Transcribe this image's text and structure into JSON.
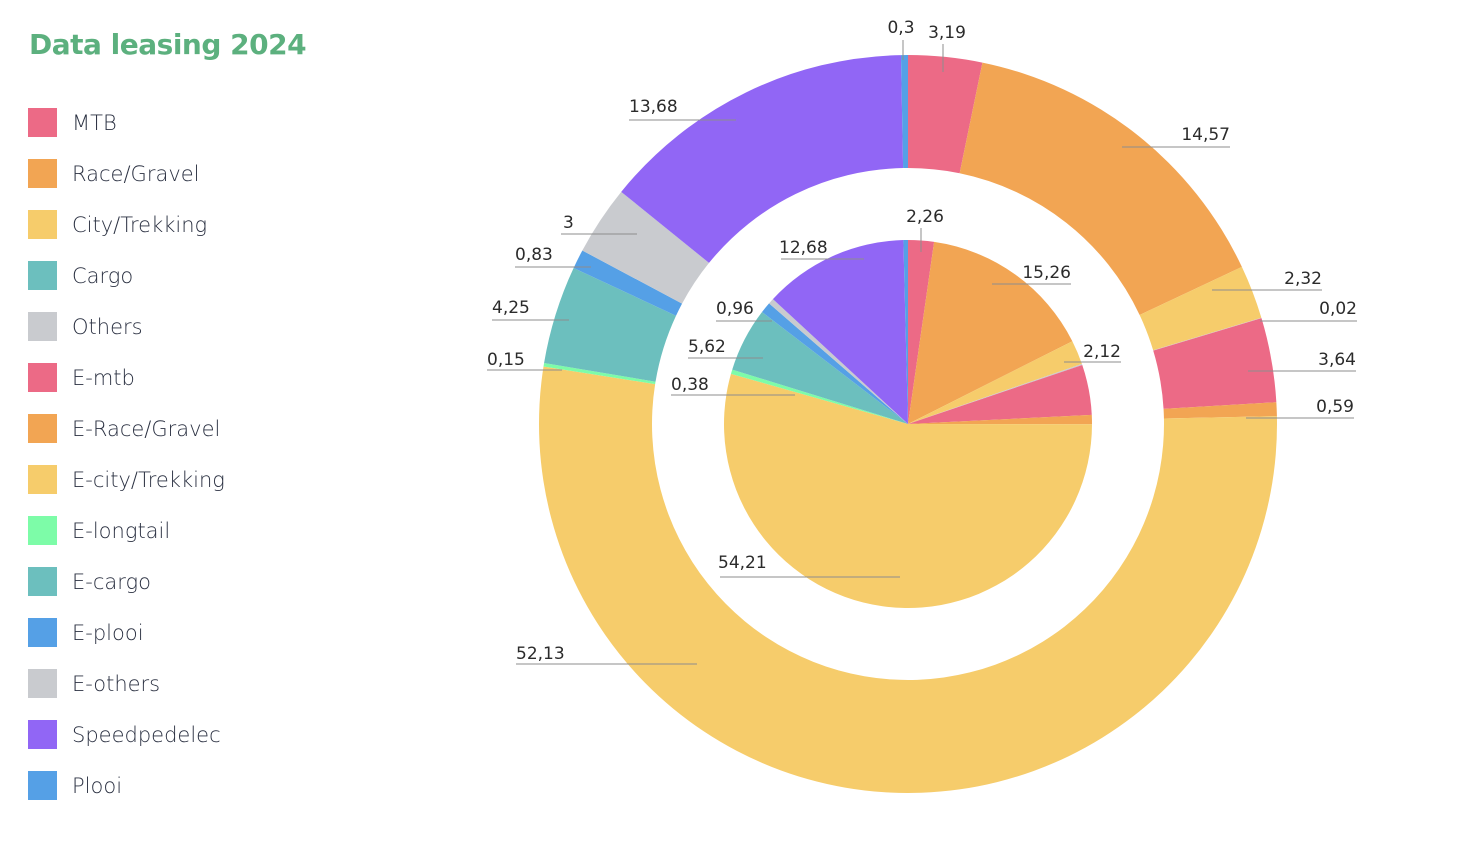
{
  "chart_data": {
    "type": "pie",
    "title": "Data leasing 2024",
    "legend_position": "left",
    "categories": [
      "MTB",
      "Race/Gravel",
      "City/Trekking",
      "Cargo",
      "Others",
      "E-mtb",
      "E-Race/Gravel",
      "E-city/Trekking",
      "E-longtail",
      "E-cargo",
      "E-plooi",
      "E-others",
      "Speedpedelec",
      "Plooi"
    ],
    "colors": {
      "MTB": "#ec6a86",
      "Race/Gravel": "#f2a553",
      "City/Trekking": "#f6cc6b",
      "Cargo": "#6cbfbe",
      "Others": "#c9cbcf",
      "E-mtb": "#ec6a86",
      "E-Race/Gravel": "#f2a553",
      "E-city/Trekking": "#f6cc6b",
      "E-longtail": "#7dfca8",
      "E-cargo": "#6cbfbe",
      "E-plooi": "#55a0e6",
      "E-others": "#c9cbcf",
      "Speedpedelec": "#9166f5",
      "Plooi": "#55a0e6"
    },
    "series": [
      {
        "name": "outer-ring",
        "slices": [
          {
            "category": "MTB",
            "value": 3.19,
            "label": "3,19"
          },
          {
            "category": "Race/Gravel",
            "value": 14.57,
            "label": "14,57"
          },
          {
            "category": "City/Trekking",
            "value": 2.32,
            "label": "2,32"
          },
          {
            "category": "Others",
            "value": 0.02,
            "label": "0,02"
          },
          {
            "category": "E-mtb",
            "value": 3.64,
            "label": "3,64"
          },
          {
            "category": "E-Race/Gravel",
            "value": 0.59,
            "label": "0,59"
          },
          {
            "category": "E-city/Trekking",
            "value": 52.13,
            "label": "52,13"
          },
          {
            "category": "E-longtail",
            "value": 0.15,
            "label": "0,15"
          },
          {
            "category": "E-cargo",
            "value": 4.25,
            "label": "4,25"
          },
          {
            "category": "E-plooi",
            "value": 0.83,
            "label": "0,83"
          },
          {
            "category": "E-others",
            "value": 3,
            "label": "3"
          },
          {
            "category": "Speedpedelec",
            "value": 13.68,
            "label": "13,68"
          },
          {
            "category": "Plooi",
            "value": 0.3,
            "label": "0,3"
          }
        ]
      },
      {
        "name": "inner-pie",
        "slices": [
          {
            "category": "MTB",
            "value": 2.26,
            "label": "2,26"
          },
          {
            "category": "Race/Gravel",
            "value": 15.26,
            "label": "15,26"
          },
          {
            "category": "City/Trekking",
            "value": 2.12,
            "label": "2,12"
          },
          {
            "category": "Others",
            "value": 0.1,
            "label": null
          },
          {
            "category": "E-mtb",
            "value": 4.4,
            "label": null
          },
          {
            "category": "E-Race/Gravel",
            "value": 0.8,
            "label": null
          },
          {
            "category": "E-city/Trekking",
            "value": 54.21,
            "label": "54,21"
          },
          {
            "category": "E-longtail",
            "value": 0.38,
            "label": "0,38"
          },
          {
            "category": "E-cargo",
            "value": 5.62,
            "label": "5,62"
          },
          {
            "category": "E-plooi",
            "value": 0.96,
            "label": "0,96"
          },
          {
            "category": "E-others",
            "value": 0.5,
            "label": null
          },
          {
            "category": "Speedpedelec",
            "value": 12.68,
            "label": "12,68"
          },
          {
            "category": "Plooi",
            "value": 0.4,
            "label": null
          }
        ]
      }
    ]
  }
}
